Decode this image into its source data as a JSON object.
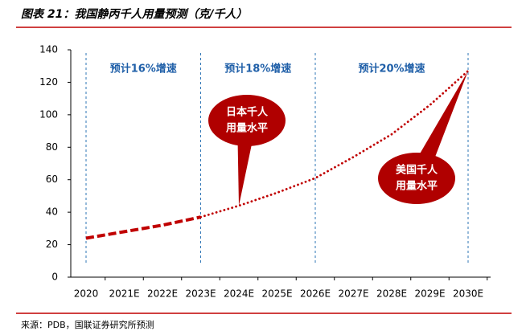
{
  "chart_data": {
    "type": "line",
    "title": "图表 21：我国静丙千人用量预测（克/千人）",
    "source": "来源：PDB，国联证券研究所预测",
    "categories": [
      "2020",
      "2021E",
      "2022E",
      "2023E",
      "2024E",
      "2025E",
      "2026E",
      "2027E",
      "2028E",
      "2029E",
      "2030E"
    ],
    "series": [
      {
        "color": "#c00000",
        "style": "dashed",
        "values": [
          24,
          28,
          32,
          37,
          null,
          null,
          null,
          null,
          null,
          null,
          null
        ]
      },
      {
        "color": "#c00000",
        "style": "dotted",
        "values": [
          null,
          null,
          null,
          37,
          44,
          52,
          61,
          74,
          88,
          106,
          127
        ]
      }
    ],
    "ylim": [
      0,
      140
    ],
    "yticks": [
      0,
      20,
      40,
      60,
      80,
      100,
      120,
      140
    ],
    "regions": [
      {
        "text": "预计16%增速",
        "from": "2020",
        "to": "2023E"
      },
      {
        "text": "预计18%增速",
        "from": "2023E",
        "to": "2026E"
      },
      {
        "text": "预计20%增速",
        "from": "2026E",
        "to": "2030E"
      }
    ],
    "callouts": [
      {
        "lines": [
          "日本千人",
          "用量水平"
        ],
        "target": "2024E"
      },
      {
        "lines": [
          "美国千人",
          "用量水平"
        ],
        "target": "2030E"
      }
    ]
  }
}
